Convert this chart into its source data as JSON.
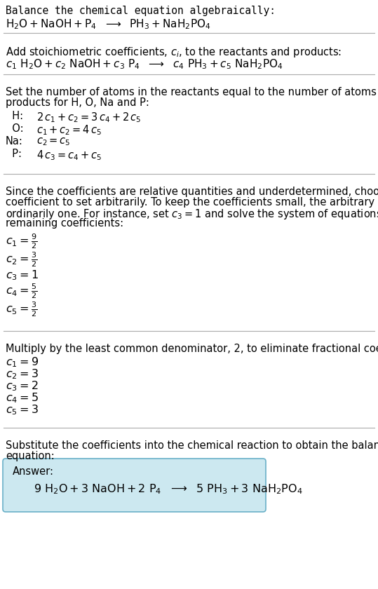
{
  "bg_color": "#ffffff",
  "text_color": "#000000",
  "line_color": "#aaaaaa",
  "answer_box_color": "#cce8f0",
  "answer_box_edge": "#6ab0c8",
  "font_size": 10.5,
  "font_family": "monospace"
}
